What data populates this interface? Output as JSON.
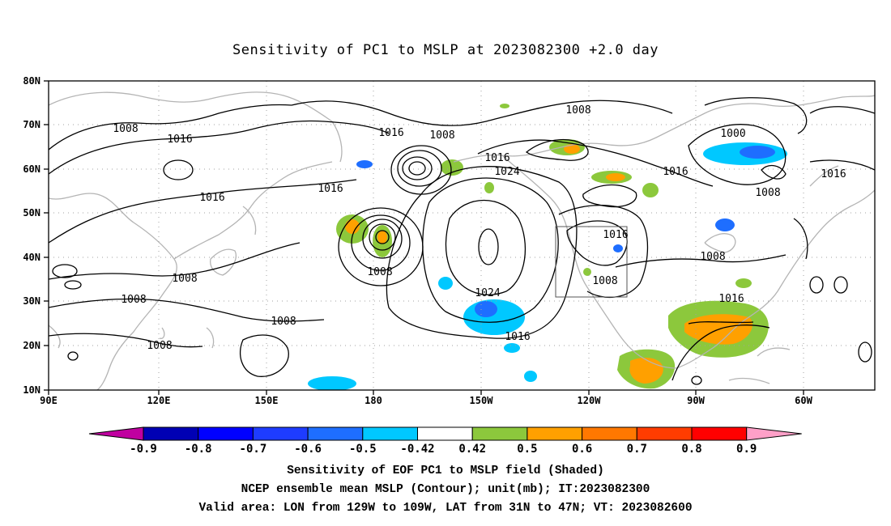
{
  "title": "Sensitivity of PC1 to MSLP at 2023082300 +2.0 day",
  "map": {
    "lon_labels": [
      "90E",
      "120E",
      "150E",
      "180",
      "150W",
      "120W",
      "90W",
      "60W"
    ],
    "lat_labels": [
      "80N",
      "70N",
      "60N",
      "50N",
      "40N",
      "30N",
      "20N",
      "10N"
    ],
    "contour_labels": [
      "1008",
      "1016",
      "1016",
      "1016",
      "1008",
      "1008",
      "1008",
      "1008",
      "1008",
      "1016",
      "1008",
      "1016",
      "1024",
      "1024",
      "1016",
      "1008",
      "1000",
      "1016",
      "1008",
      "1016",
      "1008",
      "1016",
      "1008",
      "1016"
    ],
    "valid_area_box": {
      "lon_from": "129W",
      "lon_to": "109W",
      "lat_from": "31N",
      "lat_to": "47N"
    }
  },
  "colorbar": {
    "tick_labels": [
      "-0.9",
      "-0.8",
      "-0.7",
      "-0.6",
      "-0.5",
      "-0.42",
      "0.42",
      "0.5",
      "0.6",
      "0.7",
      "0.8",
      "0.9"
    ],
    "colors": {
      "low_end": "#c000a0",
      "bins": [
        "#0000b4",
        "#0000ff",
        "#1e3cff",
        "#1e6eff",
        "#00c8ff",
        "#ffffff",
        "#8cc83c",
        "#ffa000",
        "#ff7800",
        "#ff3c00",
        "#ff0000"
      ],
      "high_end": "#ffa0c8"
    }
  },
  "captions": {
    "line1": "Sensitivity of EOF PC1 to MSLP field (Shaded)",
    "line2": "NCEP ensemble mean MSLP (Contour); unit(mb); IT:2023082300",
    "line3": "Valid area: LON from 129W to 109W, LAT from 31N to 47N; VT: 2023082600"
  },
  "colors": {
    "contour": "#000000",
    "coastline": "#b4b4b4",
    "grid": "#a0a0a0",
    "negative_shade": "#00c8ff",
    "negative_strong": "#1e6eff",
    "positive_shade": "#8cc83c",
    "positive_strong": "#ffa000"
  }
}
